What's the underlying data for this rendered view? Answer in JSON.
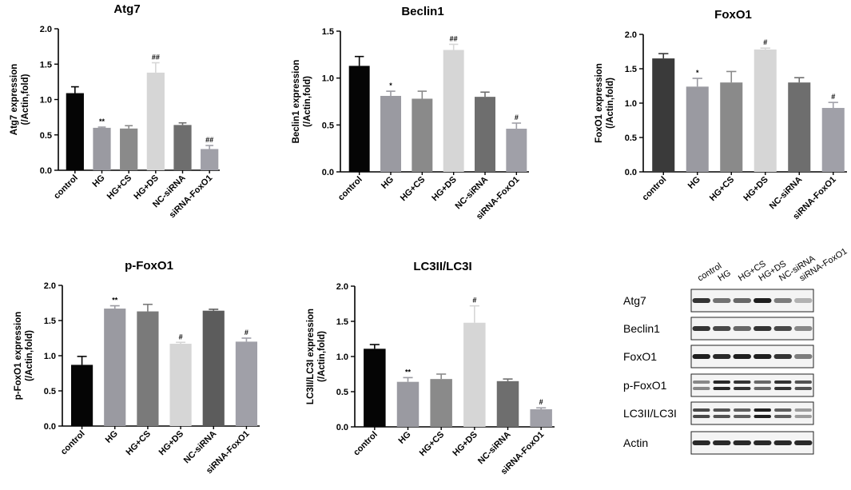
{
  "chart_data": [
    {
      "type": "bar",
      "title": "Atg7",
      "ylabel_line1": "Atg7 expression",
      "ylabel_line2": "(/Actin,fold)",
      "categories": [
        "control",
        "HG",
        "HG+CS",
        "HG+DS",
        "NC-siRNA",
        "siRNA-FoxO1"
      ],
      "values": [
        1.09,
        0.6,
        0.59,
        1.38,
        0.64,
        0.3
      ],
      "errors": [
        0.09,
        0.01,
        0.04,
        0.14,
        0.03,
        0.05
      ],
      "significance": [
        "",
        "**",
        "",
        "##",
        "",
        "##"
      ],
      "ylim": [
        0,
        2.0
      ],
      "yticks": [
        "0.0",
        "0.5",
        "1.0",
        "1.5",
        "2.0"
      ],
      "colors": [
        "#050505",
        "#9a9aa1",
        "#8a8a8a",
        "#d6d6d6",
        "#6e6e6e",
        "#a0a0a8"
      ]
    },
    {
      "type": "bar",
      "title": "Beclin1",
      "ylabel_line1": "Beclin1 expression",
      "ylabel_line2": "(/Actin,fold)",
      "categories": [
        "control",
        "HG",
        "HG+CS",
        "HG+DS",
        "NC-siRNA",
        "siRNA-FoxO1"
      ],
      "values": [
        1.13,
        0.81,
        0.78,
        1.3,
        0.8,
        0.46
      ],
      "errors": [
        0.1,
        0.05,
        0.08,
        0.06,
        0.05,
        0.06
      ],
      "significance": [
        "",
        "*",
        "",
        "##",
        "",
        "#"
      ],
      "ylim": [
        0,
        1.5
      ],
      "yticks": [
        "0.0",
        "0.5",
        "1.0",
        "1.5"
      ],
      "colors": [
        "#050505",
        "#9a9aa1",
        "#8a8a8a",
        "#d6d6d6",
        "#6e6e6e",
        "#a0a0a8"
      ]
    },
    {
      "type": "bar",
      "title": "FoxO1",
      "ylabel_line1": "FoxO1 expression",
      "ylabel_line2": "(/Actin,fold)",
      "categories": [
        "control",
        "HG",
        "HG+CS",
        "HG+DS",
        "NC-siRNA",
        "siRNA-FoxO1"
      ],
      "values": [
        1.65,
        1.24,
        1.3,
        1.78,
        1.3,
        0.93
      ],
      "errors": [
        0.07,
        0.12,
        0.16,
        0.02,
        0.07,
        0.08
      ],
      "significance": [
        "",
        "*",
        "",
        "#",
        "",
        "#"
      ],
      "ylim": [
        0,
        2.0
      ],
      "yticks": [
        "0.0",
        "0.5",
        "1.0",
        "1.5",
        "2.0"
      ],
      "colors": [
        "#3a3a3a",
        "#9a9aa1",
        "#8a8a8a",
        "#d6d6d6",
        "#6e6e6e",
        "#a0a0a8"
      ]
    },
    {
      "type": "bar",
      "title": "p-FoxO1",
      "ylabel_line1": "p-FoxO1 expression",
      "ylabel_line2": "(/Actin,fold)",
      "categories": [
        "control",
        "HG",
        "HG+CS",
        "HG+DS",
        "NC-siRNA",
        "siRNA-FoxO1"
      ],
      "values": [
        0.87,
        1.67,
        1.63,
        1.17,
        1.64,
        1.2
      ],
      "errors": [
        0.12,
        0.04,
        0.1,
        0.02,
        0.02,
        0.05
      ],
      "significance": [
        "",
        "**",
        "",
        "#",
        "",
        "#"
      ],
      "ylim": [
        0,
        2.0
      ],
      "yticks": [
        "0.0",
        "0.5",
        "1.0",
        "1.5",
        "2.0"
      ],
      "colors": [
        "#050505",
        "#9a9aa1",
        "#7a7a7a",
        "#d6d6d6",
        "#5c5c5c",
        "#a0a0a8"
      ]
    },
    {
      "type": "bar",
      "title": "LC3II/LC3I",
      "ylabel_line1": "LC3II/LC3I expression",
      "ylabel_line2": "(/Actin,fold)",
      "categories": [
        "control",
        "HG",
        "HG+CS",
        "HG+DS",
        "NC-siRNA",
        "siRNA-FoxO1"
      ],
      "values": [
        1.11,
        0.64,
        0.68,
        1.48,
        0.65,
        0.25
      ],
      "errors": [
        0.06,
        0.06,
        0.07,
        0.24,
        0.03,
        0.02
      ],
      "significance": [
        "",
        "**",
        "",
        "#",
        "",
        "#"
      ],
      "ylim": [
        0,
        2.0
      ],
      "yticks": [
        "0.0",
        "0.5",
        "1.0",
        "1.5",
        "2.0"
      ],
      "colors": [
        "#050505",
        "#9a9aa1",
        "#8a8a8a",
        "#d6d6d6",
        "#6e6e6e",
        "#a0a0a8"
      ]
    }
  ],
  "western_blot": {
    "lanes": [
      "control",
      "HG",
      "HG+CS",
      "HG+DS",
      "NC-siRNA",
      "siRNA-FoxO1"
    ],
    "rows": [
      {
        "label": "Atg7",
        "intensities": [
          0.85,
          0.55,
          0.6,
          0.95,
          0.5,
          0.25
        ]
      },
      {
        "label": "Beclin1",
        "intensities": [
          0.85,
          0.75,
          0.6,
          0.85,
          0.75,
          0.45
        ]
      },
      {
        "label": "FoxO1",
        "intensities": [
          0.95,
          0.9,
          0.95,
          0.95,
          0.85,
          0.5
        ]
      },
      {
        "label": "p-FoxO1",
        "intensities": [
          0.45,
          0.9,
          0.85,
          0.6,
          0.85,
          0.7
        ]
      },
      {
        "label": "LC3II/LC3I",
        "intensities": [
          0.75,
          0.7,
          0.65,
          0.95,
          0.65,
          0.35
        ]
      },
      {
        "label": "Actin",
        "intensities": [
          0.9,
          0.9,
          0.9,
          0.9,
          0.9,
          0.9
        ]
      }
    ]
  }
}
